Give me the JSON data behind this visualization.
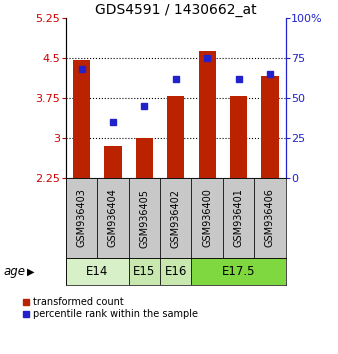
{
  "title": "GDS4591 / 1430662_at",
  "samples": [
    "GSM936403",
    "GSM936404",
    "GSM936405",
    "GSM936402",
    "GSM936400",
    "GSM936401",
    "GSM936406"
  ],
  "bar_values": [
    4.47,
    2.85,
    3.0,
    3.78,
    4.63,
    3.78,
    4.17
  ],
  "bar_bottom": 2.25,
  "percentile_values": [
    68,
    35,
    45,
    62,
    75,
    62,
    65
  ],
  "ylim_left": [
    2.25,
    5.25
  ],
  "ylim_right": [
    0,
    100
  ],
  "yticks_left": [
    2.25,
    3,
    3.75,
    4.5,
    5.25
  ],
  "yticks_right": [
    0,
    25,
    50,
    75,
    100
  ],
  "ytick_labels_left": [
    "2.25",
    "3",
    "3.75",
    "4.5",
    "5.25"
  ],
  "ytick_labels_right": [
    "0",
    "25",
    "50",
    "75",
    "100%"
  ],
  "hlines": [
    3.0,
    3.75,
    4.5
  ],
  "age_groups": [
    {
      "label": "E14",
      "indices": [
        0,
        1
      ],
      "color": "#d8f0c8"
    },
    {
      "label": "E15",
      "indices": [
        2
      ],
      "color": "#c8e8b0"
    },
    {
      "label": "E16",
      "indices": [
        3
      ],
      "color": "#c8e8b0"
    },
    {
      "label": "E17.5",
      "indices": [
        4,
        5,
        6
      ],
      "color": "#80d840"
    }
  ],
  "bar_color": "#bb2200",
  "dot_color": "#2222cc",
  "bar_width": 0.55,
  "legend_labels": [
    "transformed count",
    "percentile rank within the sample"
  ],
  "xlabel_age": "age",
  "background_plot": "#ffffff",
  "background_sample": "#c8c8c8",
  "title_fontsize": 10,
  "tick_fontsize": 8,
  "sample_fontsize": 7,
  "age_fontsize": 8.5
}
